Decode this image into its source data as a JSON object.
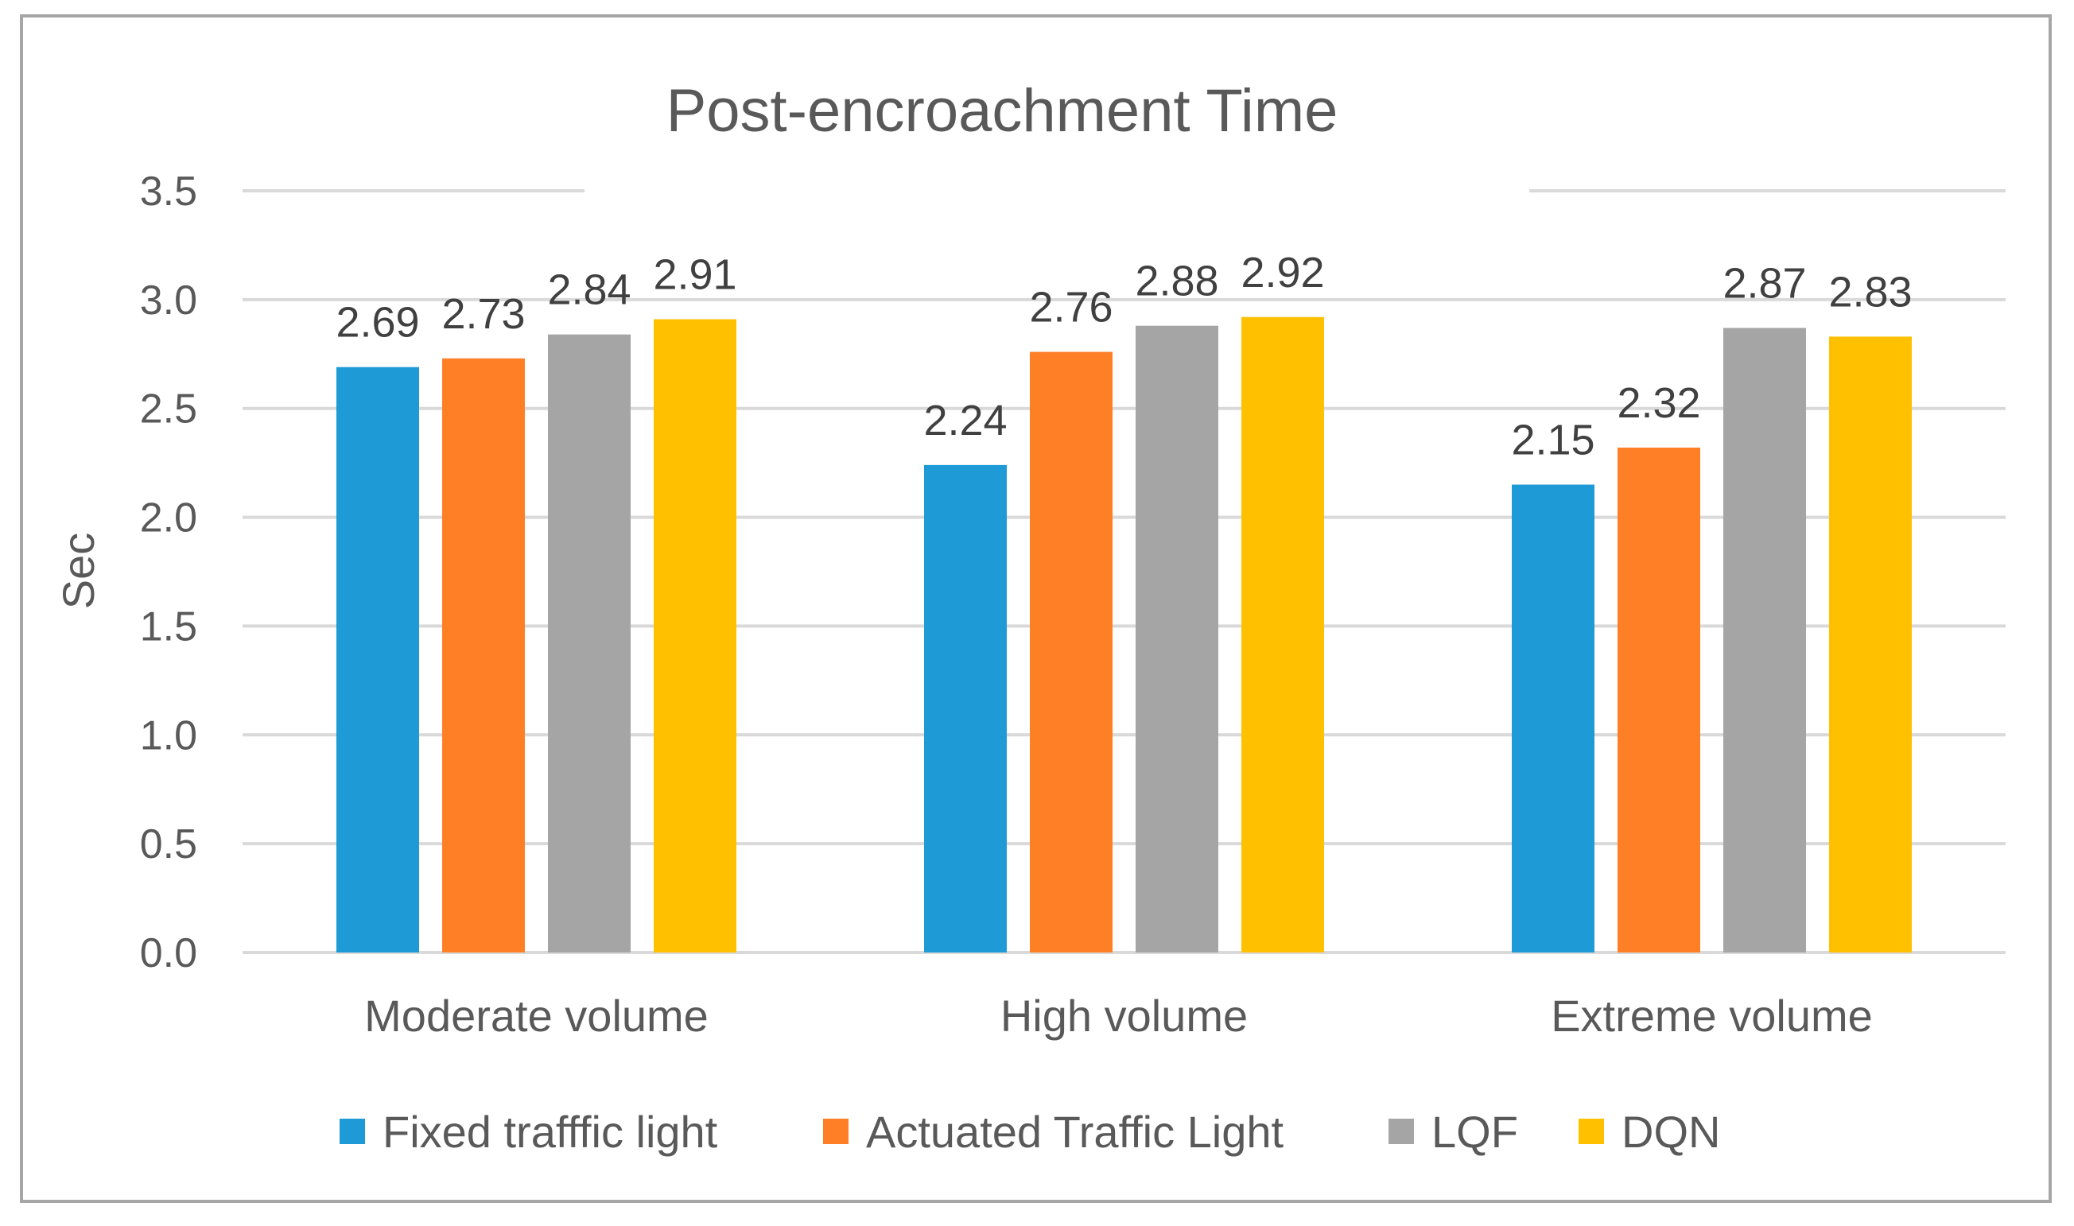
{
  "chart_data": {
    "type": "bar",
    "title": "Post-encroachment Time",
    "xlabel": "",
    "ylabel": "Sec",
    "ylim": [
      0,
      3.5
    ],
    "ytick_step": 0.5,
    "yticks": [
      "0.0",
      "0.5",
      "1.0",
      "1.5",
      "2.0",
      "2.5",
      "3.0",
      "3.5"
    ],
    "grid": true,
    "legend_position": "bottom",
    "categories": [
      "Moderate volume",
      "High volume",
      "Extreme volume"
    ],
    "series": [
      {
        "name": "Fixed trafffic light",
        "color": "#1e9ad6",
        "values": [
          2.69,
          2.24,
          2.15
        ],
        "labels": [
          "2.69",
          "2.24",
          "2.15"
        ]
      },
      {
        "name": "Actuated Traffic Light",
        "color": "#ff7f27",
        "values": [
          2.73,
          2.76,
          2.32
        ],
        "labels": [
          "2.73",
          "2.76",
          "2.32"
        ]
      },
      {
        "name": "LQF",
        "color": "#a5a5a5",
        "values": [
          2.84,
          2.88,
          2.87
        ],
        "labels": [
          "2.84",
          "2.88",
          "2.87"
        ]
      },
      {
        "name": "DQN",
        "color": "#ffc000",
        "values": [
          2.91,
          2.92,
          2.83
        ],
        "labels": [
          "2.91",
          "2.92",
          "2.83"
        ]
      }
    ]
  }
}
